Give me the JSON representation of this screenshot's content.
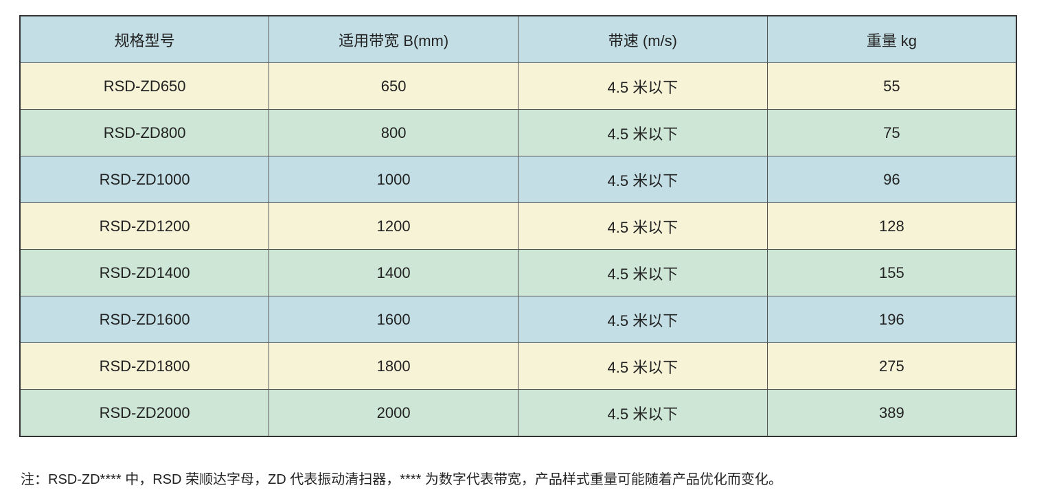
{
  "table": {
    "header": [
      "规格型号",
      "适用带宽 B(mm)",
      "带速 (m/s)",
      "重量 kg"
    ],
    "rows": [
      [
        "RSD-ZD650",
        "650",
        "4.5 米以下",
        "55"
      ],
      [
        "RSD-ZD800",
        "800",
        "4.5 米以下",
        "75"
      ],
      [
        "RSD-ZD1000",
        "1000",
        "4.5 米以下",
        "96"
      ],
      [
        "RSD-ZD1200",
        "1200",
        "4.5 米以下",
        "128"
      ],
      [
        "RSD-ZD1400",
        "1400",
        "4.5 米以下",
        "155"
      ],
      [
        "RSD-ZD1600",
        "1600",
        "4.5 米以下",
        "196"
      ],
      [
        "RSD-ZD1800",
        "1800",
        "4.5 米以下",
        "275"
      ],
      [
        "RSD-ZD2000",
        "2000",
        "4.5 米以下",
        "389"
      ]
    ]
  },
  "note": "注：RSD-ZD**** 中，RSD 荣顺达字母，ZD 代表振动清扫器，**** 为数字代表带宽，产品样式重量可能随着产品优化而变化。"
}
